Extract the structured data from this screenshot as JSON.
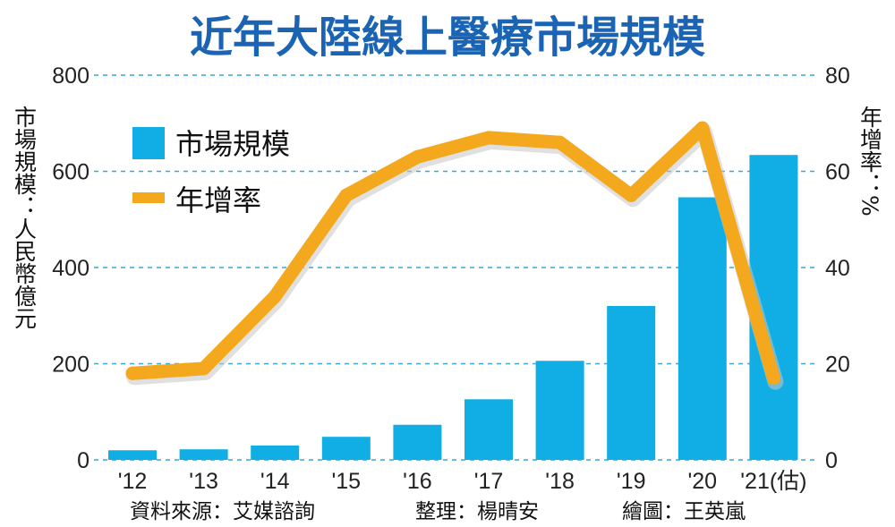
{
  "chart_data": {
    "type": "bar",
    "title": "近年大陸線上醫療市場規模",
    "categories": [
      "'12",
      "'13",
      "'14",
      "'15",
      "'16",
      "'17",
      "'18",
      "'19",
      "'20",
      "'21(估)"
    ],
    "series": [
      {
        "name": "市場規模",
        "type": "bar",
        "axis": "left",
        "color": "#10aee4",
        "values": [
          20,
          22,
          30,
          48,
          73,
          126,
          206,
          320,
          546,
          634
        ]
      },
      {
        "name": "年增率",
        "type": "line",
        "axis": "right",
        "color": "#f4a81d",
        "values": [
          18,
          19,
          34,
          55,
          63,
          67,
          66,
          55,
          69,
          17
        ]
      }
    ],
    "ylabel_left": "市場規模：人民幣億元",
    "ylabel_right": "年增率：%",
    "ylim_left": [
      0,
      800
    ],
    "ylim_right": [
      0,
      80
    ],
    "yticks_left": [
      "0",
      "200",
      "400",
      "600",
      "800"
    ],
    "yticks_right": [
      "0",
      "20",
      "40",
      "60",
      "80"
    ],
    "grid": true,
    "legend_position": "top-left"
  },
  "footer": {
    "source": "資料來源：艾媒諮詢",
    "editor": "整理：楊晴安",
    "artist": "繪圖：王英嵐"
  },
  "colors": {
    "title": "#1b63b3",
    "bar": "#10aee4",
    "line": "#f4a81d",
    "grid": "#29aee0"
  }
}
